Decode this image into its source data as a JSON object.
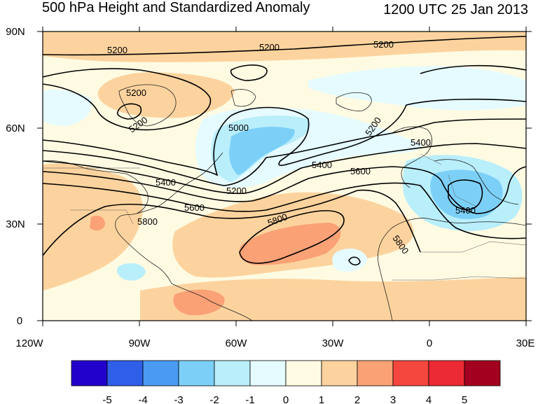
{
  "title": "500 hPa Height and Standardized Anomaly",
  "valid_time": "1200 UTC 25 Jan 2013",
  "axes": {
    "lon_ticks": [
      "120W",
      "90W",
      "60W",
      "30W",
      "0",
      "30E"
    ],
    "lat_ticks": [
      "90N",
      "60N",
      "30N",
      "0"
    ],
    "lon_range": [
      -120,
      30
    ],
    "lat_range": [
      0,
      90
    ]
  },
  "colorbar": {
    "labels": [
      "-5",
      "-4",
      "-3",
      "-2",
      "-1",
      "0",
      "1",
      "2",
      "3",
      "4",
      "5"
    ],
    "colors": [
      "#2200cc",
      "#2f5ee8",
      "#4a9af2",
      "#7cd0f8",
      "#b9eefb",
      "#e5fbff",
      "#fffbe3",
      "#fcd39e",
      "#faa176",
      "#f4473d",
      "#ec2a34",
      "#a3001f"
    ]
  },
  "contour_labels": [
    {
      "text": "5200"
    },
    {
      "text": "5200"
    },
    {
      "text": "5200"
    },
    {
      "text": "5200"
    },
    {
      "text": "5200"
    },
    {
      "text": "5200"
    },
    {
      "text": "5200"
    },
    {
      "text": "5000"
    },
    {
      "text": "5400"
    },
    {
      "text": "5400"
    },
    {
      "text": "5400"
    },
    {
      "text": "5400"
    },
    {
      "text": "5600"
    },
    {
      "text": "5600"
    },
    {
      "text": "5800"
    },
    {
      "text": "5800"
    },
    {
      "text": "5800"
    }
  ]
}
